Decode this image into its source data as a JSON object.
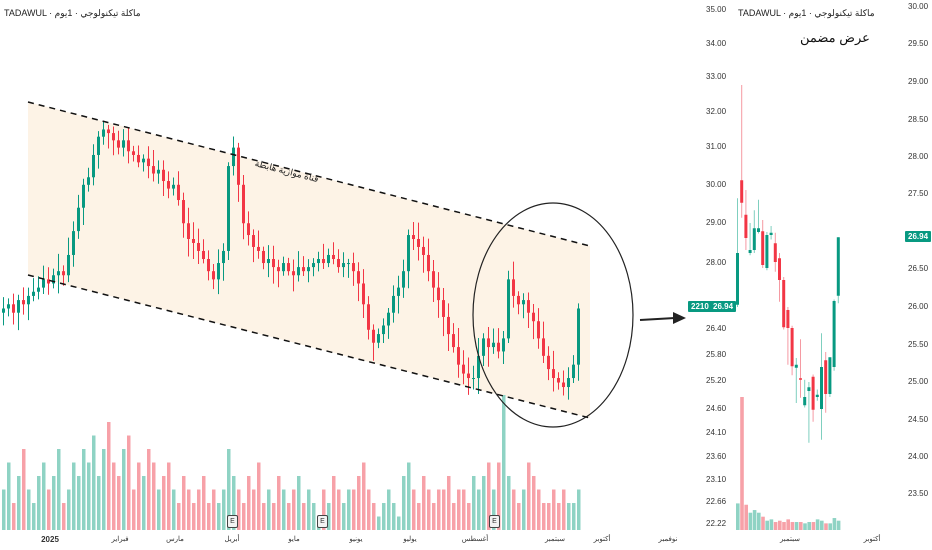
{
  "main_chart": {
    "header": "TADAWUL · ماكلة تيكنولوجي · 1يوم",
    "annotation": "قناة موازية هابطة",
    "price_labels": [
      "35.00",
      "34.00",
      "33.00",
      "32.00",
      "31.00",
      "30.00",
      "29.00",
      "28.00",
      "26.40",
      "25.80",
      "25.20",
      "24.60",
      "24.10",
      "23.60",
      "23.10",
      "22.66",
      "22.22"
    ],
    "badge_volume": "2210",
    "badge_price": "26.94",
    "x_labels": [
      "2025",
      "فبراير",
      "مارس",
      "أبريل",
      "مايو",
      "يونيو",
      "يوليو",
      "أغسطس",
      "سبتمبر",
      "أكتوبر",
      "نوفمبر"
    ],
    "earnings_marker": "E"
  },
  "zoom_chart": {
    "header": "TADAWUL · ماكلة تيكنولوجي · 1يوم",
    "title": "عرض مضمن",
    "price_labels": [
      "30.00",
      "29.50",
      "29.00",
      "28.50",
      "28.00",
      "27.50",
      "26.50",
      "26.00",
      "25.50",
      "25.00",
      "24.50",
      "24.00",
      "23.50"
    ],
    "badge_price": "26.94",
    "x_labels": [
      "سبتمبر",
      "أكتوبر"
    ]
  },
  "colors": {
    "up": "#089981",
    "down": "#f23645",
    "up_vol": "#8fd3c4",
    "down_vol": "#f7a1a8",
    "channel_fill": "#fdf3e6"
  },
  "chart_data": [
    {
      "type": "candlestick",
      "scale": "log",
      "ylim": [
        22.22,
        35.0
      ],
      "closes": [
        26.9,
        27.0,
        26.8,
        27.1,
        27.0,
        27.2,
        27.3,
        27.4,
        27.6,
        27.5,
        27.7,
        27.8,
        27.7,
        28.2,
        28.8,
        29.4,
        30.0,
        30.2,
        30.8,
        31.3,
        31.5,
        31.4,
        31.2,
        31.0,
        31.2,
        30.9,
        30.8,
        30.6,
        30.7,
        30.5,
        30.3,
        30.4,
        30.1,
        29.9,
        30.0,
        29.6,
        29.0,
        28.6,
        28.5,
        28.3,
        28.1,
        27.8,
        27.6,
        28.0,
        28.3,
        30.5,
        31.0,
        30.0,
        29.0,
        28.7,
        28.4,
        28.3,
        28.0,
        28.1,
        27.9,
        27.8,
        28.0,
        27.8,
        27.7,
        27.9,
        27.8,
        27.9,
        28.0,
        28.1,
        28.0,
        28.2,
        28.1,
        27.9,
        28.0,
        28.0,
        27.8,
        27.5,
        27.0,
        26.4,
        26.1,
        26.3,
        26.5,
        26.8,
        27.2,
        27.4,
        27.8,
        28.7,
        28.6,
        28.4,
        28.2,
        27.8,
        27.4,
        27.1,
        26.7,
        26.3,
        26.0,
        25.6,
        25.4,
        25.3,
        25.3,
        25.8,
        26.2,
        26.0,
        26.1,
        25.9,
        26.2,
        27.6,
        27.2,
        27.0,
        27.1,
        26.8,
        26.6,
        26.2,
        25.8,
        25.5,
        25.3,
        25.2,
        25.1,
        25.3,
        25.6,
        26.9
      ],
      "volumes": [
        3,
        5,
        2,
        4,
        6,
        3,
        2,
        4,
        5,
        3,
        4,
        6,
        2,
        3,
        5,
        4,
        6,
        5,
        7,
        4,
        6,
        8,
        5,
        4,
        6,
        7,
        3,
        5,
        4,
        6,
        5,
        3,
        4,
        5,
        3,
        2,
        4,
        3,
        2,
        3,
        4,
        2,
        3,
        2,
        3,
        6,
        4,
        3,
        2,
        4,
        3,
        5,
        2,
        3,
        2,
        4,
        3,
        2,
        3,
        4,
        2,
        3,
        2,
        1,
        3,
        2,
        4,
        3,
        2,
        3,
        3,
        4,
        5,
        3,
        2,
        1,
        2,
        3,
        2,
        1,
        4,
        5,
        3,
        2,
        4,
        3,
        2,
        3,
        3,
        4,
        2,
        3,
        3,
        2,
        4,
        3,
        4,
        5,
        3,
        5,
        10,
        4,
        3,
        2,
        3,
        5,
        4,
        3,
        2,
        2,
        3,
        2,
        3,
        2,
        2,
        3
      ]
    },
    {
      "type": "candlestick",
      "scale": "linear",
      "ylim": [
        23.2,
        30.0
      ],
      "ohlc": [
        [
          26.03,
          27.45,
          26.0,
          26.72
        ],
        [
          27.69,
          28.96,
          27.19,
          27.39
        ],
        [
          27.23,
          27.56,
          26.76,
          26.92
        ],
        [
          26.72,
          27.12,
          26.69,
          26.76
        ],
        [
          26.76,
          27.29,
          26.72,
          27.05
        ],
        [
          27.0,
          27.43,
          26.98,
          27.05
        ],
        [
          27.01,
          27.16,
          26.52,
          26.56
        ],
        [
          26.52,
          27.0,
          26.49,
          26.96
        ],
        [
          26.96,
          27.08,
          26.9,
          26.99
        ],
        [
          26.85,
          26.99,
          26.47,
          26.6
        ],
        [
          26.65,
          26.72,
          26.07,
          26.36
        ],
        [
          26.36,
          26.4,
          25.7,
          25.73
        ],
        [
          25.96,
          26.0,
          25.23,
          25.72
        ],
        [
          25.72,
          25.75,
          25.09,
          25.21
        ],
        [
          25.19,
          25.32,
          24.72,
          25.23
        ],
        [
          25.05,
          25.57,
          24.79,
          25.03
        ],
        [
          24.69,
          25.03,
          24.66,
          24.8
        ],
        [
          24.88,
          25.0,
          24.19,
          24.93
        ],
        [
          25.07,
          25.1,
          24.47,
          24.63
        ],
        [
          24.8,
          24.9,
          24.75,
          24.83
        ],
        [
          24.64,
          25.65,
          24.23,
          25.2
        ],
        [
          25.29,
          25.4,
          24.59,
          24.84
        ],
        [
          24.84,
          25.33,
          24.8,
          25.33
        ],
        [
          25.2,
          26.1,
          25.15,
          26.08
        ],
        [
          26.15,
          26.93,
          26.05,
          26.93
        ]
      ],
      "volumes": [
        2,
        10,
        1.9,
        1.3,
        1.5,
        1.3,
        1,
        0.7,
        0.8,
        0.6,
        0.7,
        0.6,
        0.8,
        0.6,
        0.6,
        0.6,
        0.5,
        0.6,
        0.6,
        0.8,
        0.7,
        0.5,
        0.5,
        0.9,
        0.7
      ]
    }
  ]
}
